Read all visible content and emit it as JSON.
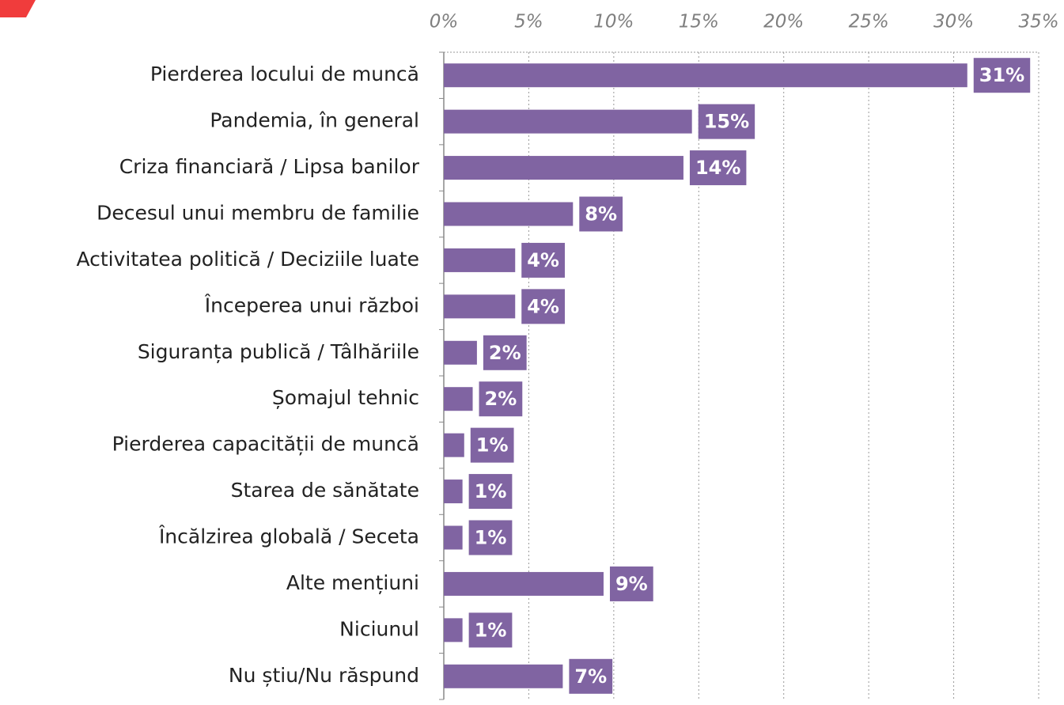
{
  "chart_data": {
    "type": "bar",
    "orientation": "horizontal",
    "categories": [
      "Pierderea locului de muncă",
      "Pandemia, în general",
      "Criza financiară / Lipsa banilor",
      "Decesul unui membru de familie",
      "Activitatea politică / Deciziile luate",
      "Începerea unui război",
      "Siguranța publică / Tâlhăriile",
      "Șomajul tehnic",
      "Pierderea capacității de muncă",
      "Starea de sănătate",
      "Încălzirea globală / Seceta",
      "Alte mențiuni",
      "Niciunul",
      "Nu știu/Nu răspund"
    ],
    "values": [
      30.8,
      14.6,
      14.1,
      7.6,
      4.2,
      4.2,
      1.95,
      1.7,
      1.2,
      1.1,
      1.1,
      9.4,
      1.1,
      7.0
    ],
    "value_labels": [
      "31%",
      "15%",
      "14%",
      "8%",
      "4%",
      "4%",
      "2%",
      "2%",
      "1%",
      "1%",
      "1%",
      "9%",
      "1%",
      "7%"
    ],
    "color": "#8064a2",
    "xlim": [
      0,
      35
    ],
    "xticks": [
      {
        "value": 0,
        "label": "0%"
      },
      {
        "value": 5,
        "label": "5%"
      },
      {
        "value": 10,
        "label": "10%"
      },
      {
        "value": 15,
        "label": "15%"
      },
      {
        "value": 20,
        "label": "20%"
      },
      {
        "value": 25,
        "label": "25%"
      },
      {
        "value": 30,
        "label": "30%"
      },
      {
        "value": 35,
        "label": "35%"
      }
    ],
    "grid": true
  }
}
